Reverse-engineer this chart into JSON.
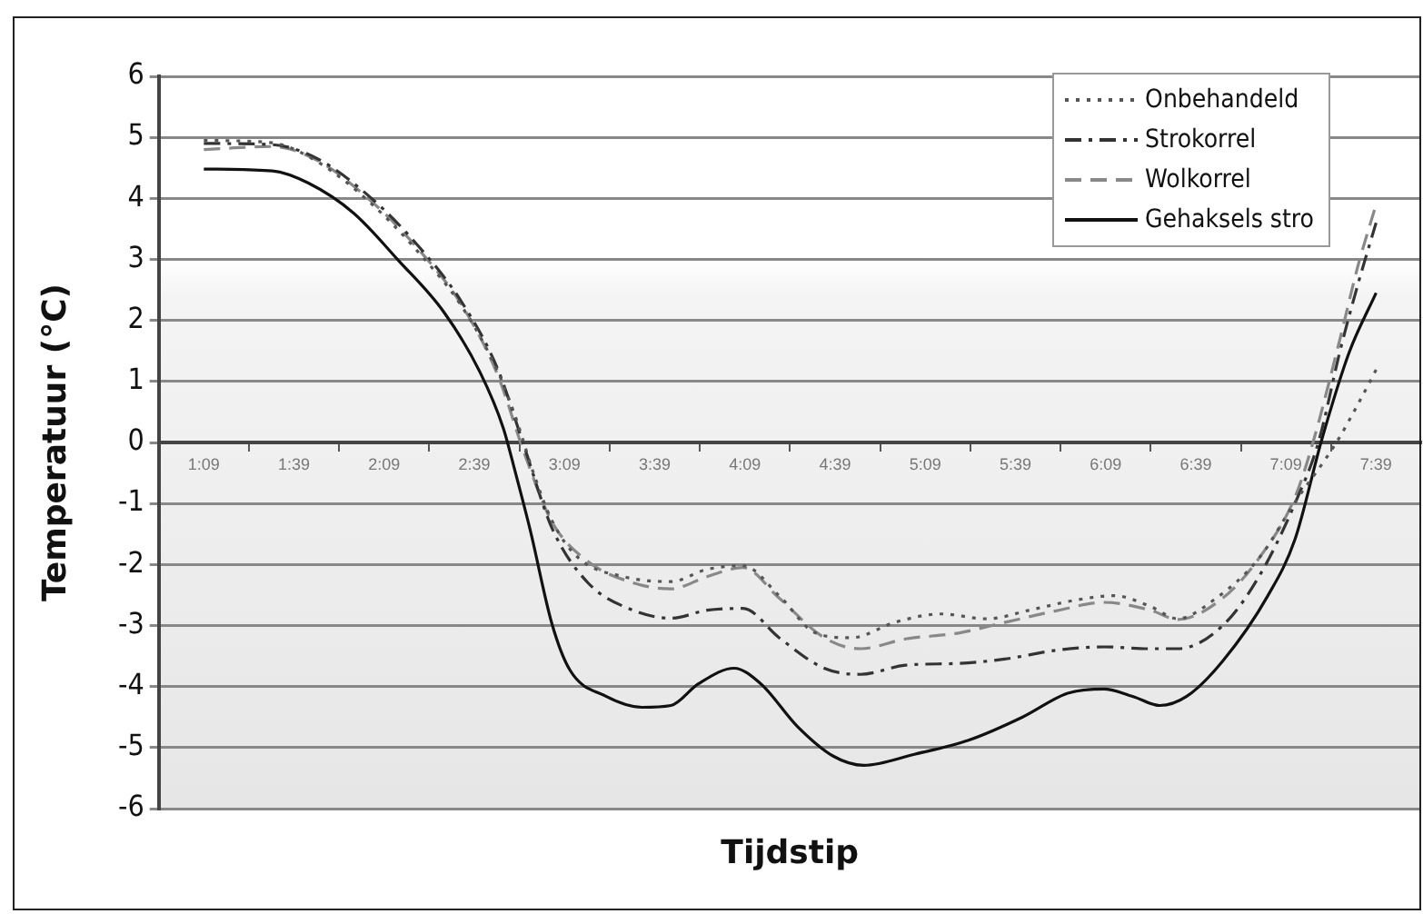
{
  "chart_data": {
    "type": "line",
    "xlabel": "Tijdstip",
    "ylabel": "Temperatuur (°C)",
    "xlim": [
      0.9,
      7.9
    ],
    "xticks": [
      {
        "value": 1.15,
        "label": "1:09"
      },
      {
        "value": 1.4,
        "label": null
      },
      {
        "value": 1.65,
        "label": "1:39"
      },
      {
        "value": 1.9,
        "label": null
      },
      {
        "value": 2.15,
        "label": "2:09"
      },
      {
        "value": 2.4,
        "label": null
      },
      {
        "value": 2.65,
        "label": "2:39"
      },
      {
        "value": 2.9,
        "label": null
      },
      {
        "value": 3.15,
        "label": "3:09"
      },
      {
        "value": 3.4,
        "label": null
      },
      {
        "value": 3.65,
        "label": "3:39"
      },
      {
        "value": 3.9,
        "label": null
      },
      {
        "value": 4.15,
        "label": "4:09"
      },
      {
        "value": 4.4,
        "label": null
      },
      {
        "value": 4.65,
        "label": "4:39"
      },
      {
        "value": 4.9,
        "label": null
      },
      {
        "value": 5.15,
        "label": "5:09"
      },
      {
        "value": 5.4,
        "label": null
      },
      {
        "value": 5.65,
        "label": "5:39"
      },
      {
        "value": 5.9,
        "label": null
      },
      {
        "value": 6.15,
        "label": "6:09"
      },
      {
        "value": 6.4,
        "label": null
      },
      {
        "value": 6.65,
        "label": "6:39"
      },
      {
        "value": 6.9,
        "label": null
      },
      {
        "value": 7.15,
        "label": "7:09"
      },
      {
        "value": 7.4,
        "label": null
      },
      {
        "value": 7.65,
        "label": "7:39"
      }
    ],
    "ylim": [
      -6,
      6
    ],
    "yticks": [
      -6,
      -5,
      -4,
      -3,
      -2,
      -1,
      0,
      1,
      2,
      3,
      4,
      5,
      6
    ],
    "grid": "y",
    "legend": "top right",
    "marker": "none",
    "series": [
      {
        "name": "Onbehandeld",
        "color": "#555555",
        "line_style": "dotted",
        "x": [
          1.15,
          1.53,
          1.78,
          2.08,
          2.33,
          2.58,
          2.78,
          2.88,
          2.98,
          3.08,
          3.23,
          3.48,
          3.74,
          3.94,
          4.14,
          4.34,
          4.54,
          4.74,
          4.99,
          5.24,
          5.49,
          5.74,
          5.99,
          6.2,
          6.4,
          6.55,
          6.75,
          7.0,
          7.2,
          7.43,
          7.55,
          7.65
        ],
        "values": [
          4.95,
          4.91,
          4.6,
          3.91,
          3.15,
          2.23,
          1.16,
          0.4,
          -0.52,
          -1.28,
          -1.9,
          -2.2,
          -2.28,
          -2.08,
          -2.02,
          -2.51,
          -3.12,
          -3.2,
          -2.94,
          -2.81,
          -2.89,
          -2.74,
          -2.58,
          -2.51,
          -2.69,
          -2.89,
          -2.58,
          -1.9,
          -0.98,
          0.0,
          0.63,
          1.19
        ]
      },
      {
        "name": "Strokorrel",
        "color": "#333333",
        "line_style": "dashdot",
        "x": [
          1.15,
          1.53,
          1.78,
          2.08,
          2.33,
          2.58,
          2.78,
          2.93,
          3.08,
          3.28,
          3.53,
          3.74,
          3.94,
          4.14,
          4.34,
          4.59,
          4.79,
          5.04,
          5.34,
          5.59,
          5.89,
          6.14,
          6.4,
          6.55,
          6.8,
          7.0,
          7.2,
          7.33,
          7.45,
          7.55,
          7.65
        ],
        "values": [
          4.9,
          4.88,
          4.65,
          4.0,
          3.25,
          2.3,
          1.2,
          -0.1,
          -1.4,
          -2.3,
          -2.75,
          -2.88,
          -2.75,
          -2.72,
          -3.2,
          -3.7,
          -3.8,
          -3.65,
          -3.62,
          -3.55,
          -3.4,
          -3.35,
          -3.38,
          -3.38,
          -3.0,
          -2.2,
          -1.0,
          0.0,
          1.5,
          2.6,
          3.6
        ]
      },
      {
        "name": "Wolkorrel",
        "color": "#888888",
        "line_style": "dashed",
        "x": [
          1.15,
          1.53,
          1.78,
          2.08,
          2.33,
          2.58,
          2.78,
          2.93,
          3.08,
          3.28,
          3.53,
          3.74,
          3.94,
          4.14,
          4.34,
          4.59,
          4.79,
          5.04,
          5.34,
          5.59,
          5.89,
          6.14,
          6.4,
          6.55,
          6.8,
          7.0,
          7.2,
          7.3,
          7.45,
          7.55,
          7.65
        ],
        "values": [
          4.8,
          4.85,
          4.62,
          3.95,
          3.2,
          2.25,
          1.1,
          -0.2,
          -1.3,
          -1.95,
          -2.3,
          -2.4,
          -2.2,
          -2.05,
          -2.55,
          -3.2,
          -3.38,
          -3.22,
          -3.12,
          -2.95,
          -2.75,
          -2.62,
          -2.75,
          -2.9,
          -2.55,
          -1.9,
          -0.9,
          0.0,
          1.7,
          2.9,
          3.9
        ]
      },
      {
        "name": "Gehaksels stro",
        "color": "#111111",
        "line_style": "solid",
        "x": [
          1.15,
          1.53,
          1.73,
          1.98,
          2.23,
          2.48,
          2.68,
          2.81,
          2.88,
          2.96,
          3.08,
          3.18,
          3.38,
          3.58,
          3.74,
          3.89,
          4.09,
          4.24,
          4.44,
          4.64,
          4.81,
          5.09,
          5.39,
          5.69,
          5.94,
          6.14,
          6.3,
          6.45,
          6.6,
          6.8,
          7.05,
          7.2,
          7.35,
          7.5,
          7.65
        ],
        "values": [
          4.48,
          4.45,
          4.25,
          3.76,
          2.98,
          2.14,
          1.16,
          0.24,
          -0.52,
          -1.44,
          -2.97,
          -3.73,
          -4.16,
          -4.34,
          -4.31,
          -3.96,
          -3.7,
          -3.96,
          -4.65,
          -5.14,
          -5.29,
          -5.11,
          -4.88,
          -4.5,
          -4.11,
          -4.04,
          -4.16,
          -4.31,
          -4.16,
          -3.58,
          -2.51,
          -1.59,
          0.06,
          1.47,
          2.45
        ]
      }
    ]
  }
}
